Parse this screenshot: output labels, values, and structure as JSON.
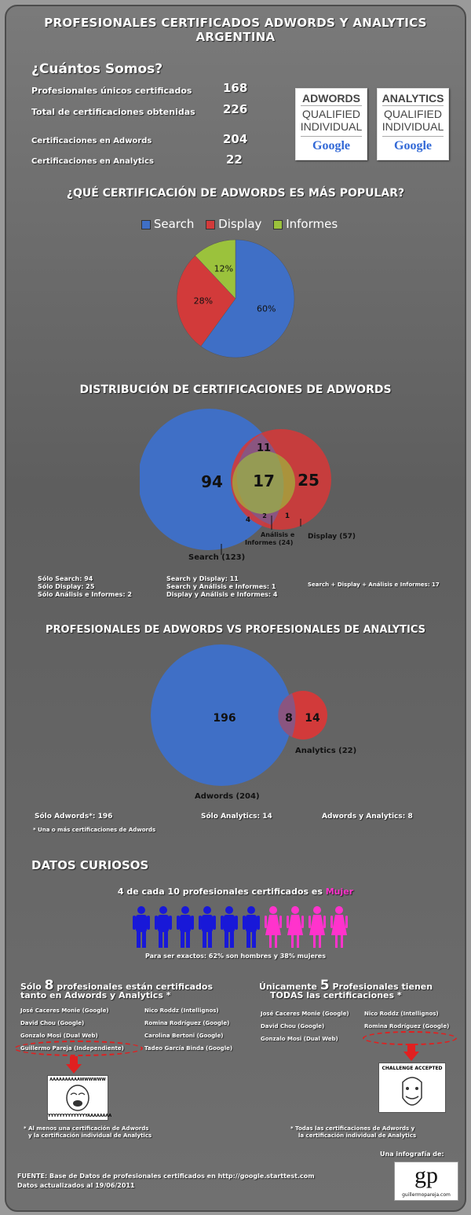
{
  "header": {
    "title_line1": "PROFESIONALES CERTIFICADOS ADWORDS Y ANALYTICS",
    "title_line2": "ARGENTINA"
  },
  "summary": {
    "heading": "¿Cuántos Somos?",
    "rows": [
      {
        "label": "Profesionales únicos certificados",
        "value": "168"
      },
      {
        "label": "Total de certificaciones obtenidas",
        "value": "226"
      },
      {
        "label": "Certificaciones en Adwords",
        "value": "204"
      },
      {
        "label": "Certificaciones en Analytics",
        "value": "22"
      }
    ]
  },
  "badges": [
    {
      "top": "ADWORDS",
      "line1": "QUALIFIED",
      "line2": "INDIVIDUAL",
      "brand": "Google"
    },
    {
      "top": "ANALYTICS",
      "line1": "QUALIFIED",
      "line2": "INDIVIDUAL",
      "brand": "Google"
    }
  ],
  "chart_data": [
    {
      "type": "pie",
      "title": "¿QUÉ CERTIFICACIÓN DE ADWORDS ES MÁS POPULAR?",
      "legend": "top",
      "slices": [
        {
          "name": "Search",
          "value": 60,
          "label": "60%",
          "color": "#3f6fc6"
        },
        {
          "name": "Display",
          "value": 28,
          "label": "28%",
          "color": "#d23a3a"
        },
        {
          "name": "Informes",
          "value": 12,
          "label": "12%",
          "color": "#9bc23c"
        }
      ]
    },
    {
      "type": "venn",
      "title": "DISTRIBUCIÓN DE CERTIFICACIONES DE ADWORDS",
      "sets": [
        {
          "name": "Search",
          "label": "Search (123)",
          "total": 123,
          "color": "#3f6fc6"
        },
        {
          "name": "Display",
          "label": "Display (57)",
          "total": 57,
          "color": "#d23a3a"
        },
        {
          "name": "Análisis e Informes",
          "label_line1": "Análisis e",
          "label_line2": "Informes (24)",
          "total": 24,
          "color": "#9bc23c"
        }
      ],
      "regions": [
        {
          "label": "94",
          "value": 94
        },
        {
          "label": "25",
          "value": 25
        },
        {
          "label": "17",
          "value": 17
        },
        {
          "label": "11",
          "value": 11
        },
        {
          "label": "4",
          "value": 4
        },
        {
          "label": "2",
          "value": 2
        },
        {
          "label": "1",
          "value": 1
        }
      ],
      "notes_col1": [
        "Sólo Search: 94",
        "Sólo Display: 25",
        "Sólo Análisis e Informes: 2"
      ],
      "notes_col2": [
        "Search y Display: 11",
        "Search y Análisis e Informes: 1",
        "Display y Análisis e Informes: 4"
      ],
      "notes_col3": [
        "Search + Display + Análisis e Informes: 17"
      ]
    },
    {
      "type": "venn",
      "title": "PROFESIONALES DE ADWORDS VS PROFESIONALES DE ANALYTICS",
      "sets": [
        {
          "name": "Adwords",
          "label": "Adwords (204)",
          "total": 204,
          "color": "#3f6fc6"
        },
        {
          "name": "Analytics",
          "label": "Analytics (22)",
          "total": 22,
          "color": "#d23a3a"
        }
      ],
      "regions": [
        {
          "label": "196",
          "value": 196
        },
        {
          "label": "8",
          "value": 8
        },
        {
          "label": "14",
          "value": 14
        }
      ],
      "notes": [
        "Sólo Adwords*: 196",
        "Sólo Analytics: 14",
        "Adwords y Analytics: 8"
      ],
      "footnote": "* Una o más certificaciones de Adwords"
    },
    {
      "type": "pictogram",
      "men": 6,
      "women": 4,
      "men_color": "#1818d8",
      "women_color": "#ff33cc"
    }
  ],
  "curious": {
    "heading": "DATOS CURIOSOS",
    "gender_line_prefix": "4 de cada 10 profesionales certificados es ",
    "gender_line_highlight": "Mujer",
    "gender_detail": "Para ser exactos: 62% son hombres y 38% mujeres"
  },
  "both": {
    "prefix": "Sólo ",
    "count": "8",
    "suffix": " profesionales están certificados",
    "line2": "tanto en Adwords y Analytics *",
    "col1": [
      "José Caceres Monie (Google)",
      "David Chou (Google)",
      "Gonzalo Mosi (Dual Web)",
      "Guillermo Pareja (Independiente)"
    ],
    "col2": [
      "Nico Roddz (Intellignos)",
      "Romina Rodríguez (Google)",
      "Carolina Bertoni (Google)",
      "Tadeo García Binda (Google)"
    ],
    "meme_text_top": "AAAAAAAAAAWWWWWW",
    "meme_text_bottom": "YYYYYYYYYYYYYYAAAAAAAA",
    "note1": "* Al menos una certificación de Adwords",
    "note2": "y la certificación individual de Analytics"
  },
  "all": {
    "prefix": "Únicamente ",
    "count": "5",
    "suffix": " Profesionales tienen",
    "line2": "TODAS las certificaciones *",
    "col1": [
      "José Caceres Monie (Google)",
      "David Chou (Google)",
      "Gonzalo Mosi (Dual Web)"
    ],
    "col2": [
      "Nico Roddz (Intellignos)",
      "Romina Rodríguez (Google)"
    ],
    "meme_text": "CHALLENGE ACCEPTED",
    "note1": "* Todas las certificaciones de Adwords y",
    "note2": "la certificación individual de Analytics"
  },
  "footer": {
    "source_line1": "FUENTE: Base de Datos de profesionales certificados en http://google.starttest.com",
    "source_line2": "Datos actualizados al 19/06/2011",
    "credit": "Una infografía de:",
    "logo_mark": "gp",
    "logo_text": "guillermopareja.com"
  }
}
